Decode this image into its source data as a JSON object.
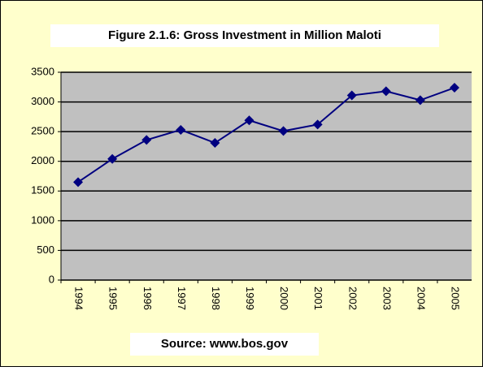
{
  "chart_data": {
    "type": "line",
    "title": "Figure 2.1.6: Gross Investment in Million Maloti",
    "source": "Source: www.bos.gov",
    "categories": [
      "1994",
      "1995",
      "1996",
      "1997",
      "1998",
      "1999",
      "2000",
      "2001",
      "2002",
      "2003",
      "2004",
      "2005"
    ],
    "values": [
      1650,
      2040,
      2360,
      2530,
      2310,
      2690,
      2510,
      2620,
      3110,
      3180,
      3030,
      3240
    ],
    "color": "#000080",
    "ylim": [
      0,
      3500
    ],
    "yticks": [
      0,
      500,
      1000,
      1500,
      2000,
      2500,
      3000,
      3500
    ],
    "grid": true
  }
}
